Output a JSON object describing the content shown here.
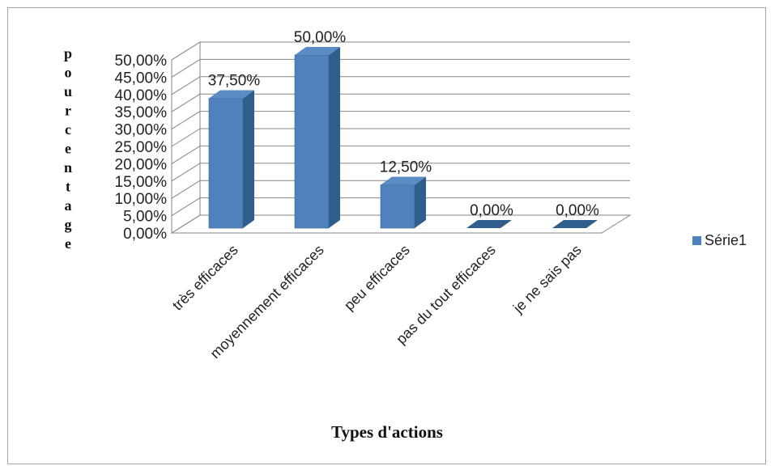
{
  "chart_data": {
    "type": "bar",
    "style": "3d-column",
    "categories": [
      "très efficaces",
      "moyennement efficaces",
      "peu efficaces",
      "pas du tout efficaces",
      "je ne sais pas"
    ],
    "series": [
      {
        "name": "Série1",
        "values": [
          37.5,
          50.0,
          12.5,
          0.0,
          0.0
        ],
        "color": "#4f81bd"
      }
    ],
    "data_labels": [
      "37,50%",
      "50,00%",
      "12,50%",
      "0,00%",
      "0,00%"
    ],
    "yticks": [
      "0,00%",
      "5,00%",
      "10,00%",
      "15,00%",
      "20,00%",
      "25,00%",
      "30,00%",
      "35,00%",
      "40,00%",
      "45,00%",
      "50,00%"
    ],
    "ylim": [
      0,
      50
    ],
    "xlabel": "Types d'actions",
    "ylabel": "pourcentage",
    "legend_position": "right",
    "grid": true
  }
}
